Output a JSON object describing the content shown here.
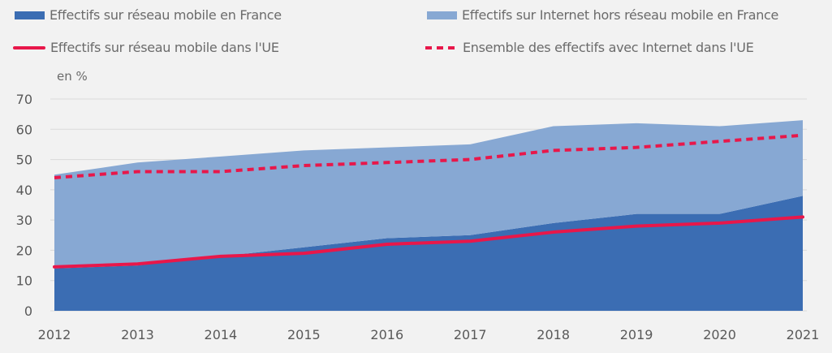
{
  "chart_data": {
    "type": "area",
    "title": "",
    "unit_label": "en %",
    "categories": [
      "2012",
      "2013",
      "2014",
      "2015",
      "2016",
      "2017",
      "2018",
      "2019",
      "2020",
      "2021"
    ],
    "ylim": [
      0,
      70
    ],
    "yticks": [
      0,
      10,
      20,
      30,
      40,
      50,
      60,
      70
    ],
    "grid": true,
    "legend_position": "top",
    "stacked_areas": [
      {
        "name": "Effectifs sur réseau mobile en France",
        "color": "#3b6db3",
        "values": [
          14,
          15,
          18,
          21,
          24,
          25,
          29,
          32,
          32,
          38
        ]
      },
      {
        "name": "Effectifs sur Internet hors réseau mobile en France",
        "color": "#87a8d3",
        "values": [
          31,
          34,
          33,
          32,
          30,
          30,
          32,
          30,
          29,
          25
        ]
      }
    ],
    "lines": [
      {
        "name": "Effectifs sur réseau mobile dans l'UE",
        "color": "#e8174a",
        "style": "solid",
        "values": [
          14.5,
          15.5,
          18,
          19,
          22,
          23,
          26,
          28,
          29,
          31
        ]
      },
      {
        "name": "Ensemble des effectifs avec Internet dans l'UE",
        "color": "#e8174a",
        "style": "dashed",
        "values": [
          44,
          46,
          46,
          48,
          49,
          50,
          53,
          54,
          56,
          58
        ]
      }
    ]
  }
}
